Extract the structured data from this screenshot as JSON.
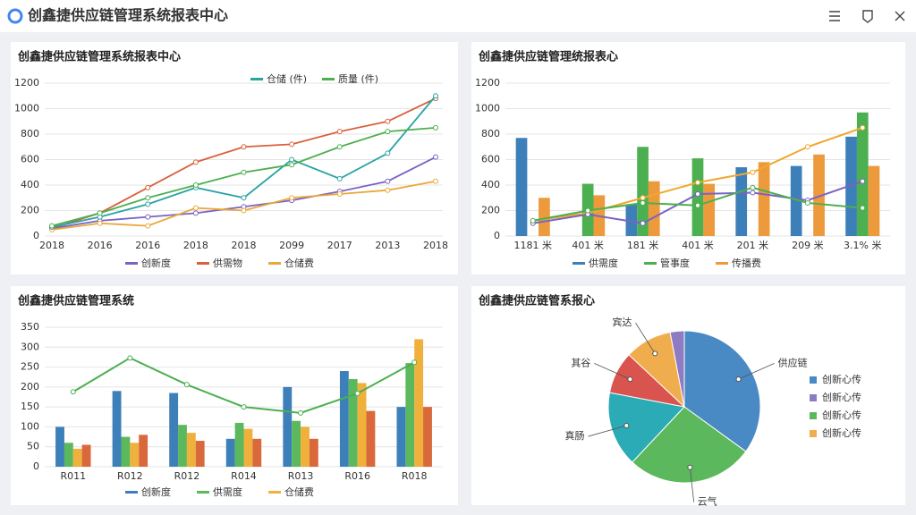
{
  "header": {
    "title": "创鑫捷供应链管理系统报表中心"
  },
  "chart_data": [
    {
      "type": "line",
      "title": "创鑫捷供应链管理系统报表中心",
      "categories": [
        "2018",
        "2016",
        "2016",
        "2018",
        "2018",
        "2099",
        "2017",
        "2013",
        "2018"
      ],
      "ylim": [
        0,
        1200
      ],
      "yticks": [
        0,
        200,
        400,
        600,
        800,
        1000,
        1200
      ],
      "grid": true,
      "series": [
        {
          "name": "创新度",
          "color": "#7b62c4",
          "values": [
            60,
            120,
            150,
            180,
            230,
            280,
            350,
            430,
            620
          ]
        },
        {
          "name": "供需物",
          "color": "#d9603b",
          "values": [
            60,
            180,
            380,
            580,
            700,
            720,
            820,
            900,
            1080
          ]
        },
        {
          "name": "仓储费",
          "color": "#e8a838",
          "values": [
            50,
            100,
            80,
            220,
            200,
            300,
            330,
            360,
            430
          ]
        },
        {
          "name": "仓储 (件)",
          "color": "#2aa3a3",
          "values": [
            70,
            150,
            250,
            380,
            300,
            600,
            450,
            650,
            1100
          ]
        },
        {
          "name": "质量 (件)",
          "color": "#4caf50",
          "values": [
            80,
            180,
            300,
            400,
            500,
            560,
            700,
            820,
            850
          ]
        }
      ]
    },
    {
      "type": "bar",
      "title": "创鑫捷供应链管理统报表心",
      "categories": [
        "1181 米",
        "401 米",
        "181 米",
        "401 米",
        "201 米",
        "209 米",
        "3.1% 米"
      ],
      "ylim": [
        0,
        1200
      ],
      "yticks": [
        0,
        200,
        400,
        600,
        800,
        1000,
        1200
      ],
      "grid": true,
      "series": [
        {
          "name": "供需度",
          "color": "#3d7fb8",
          "values": [
            770,
            null,
            250,
            null,
            540,
            550,
            780
          ]
        },
        {
          "name": "管事度",
          "color": "#4caf50",
          "values": [
            null,
            410,
            700,
            610,
            null,
            null,
            970
          ]
        },
        {
          "name": "传播费",
          "color": "#ec9a3c",
          "values": [
            300,
            320,
            430,
            410,
            580,
            640,
            550
          ]
        },
        {
          "type": "line",
          "color": "#f0a830",
          "values": [
            120,
            180,
            300,
            420,
            500,
            700,
            850
          ]
        },
        {
          "type": "line",
          "color": "#7b62c4",
          "values": [
            100,
            170,
            100,
            330,
            340,
            280,
            430
          ]
        },
        {
          "type": "line",
          "color": "#4caf50",
          "values": [
            120,
            200,
            260,
            240,
            380,
            260,
            220
          ]
        }
      ]
    },
    {
      "type": "bar",
      "title": "创鑫捷供应链管理系统",
      "categories": [
        "R011",
        "R012",
        "R012",
        "R014",
        "R013",
        "R016",
        "R018"
      ],
      "ylim": [
        0,
        350
      ],
      "yticks": [
        0,
        50,
        100,
        150,
        200,
        250,
        300,
        350
      ],
      "grid": true,
      "series": [
        {
          "name": "创新度",
          "color": "#3d7fb8",
          "values": [
            100,
            190,
            185,
            70,
            200,
            240,
            150
          ]
        },
        {
          "name": "供需度",
          "color": "#5cb85c",
          "values": [
            60,
            75,
            105,
            110,
            115,
            220,
            260
          ]
        },
        {
          "name": "仓储费",
          "color": "#f0b03c",
          "values": [
            45,
            60,
            85,
            95,
            100,
            210,
            320
          ]
        },
        {
          "color": "#d9683b",
          "values": [
            55,
            80,
            65,
            70,
            70,
            140,
            150
          ]
        },
        {
          "type": "line",
          "color": "#4caf50",
          "values": [
            188,
            273,
            206,
            150,
            135,
            184,
            262
          ]
        }
      ]
    },
    {
      "type": "pie",
      "title": "创鑫捷供应链管系报心",
      "categories": [
        "供应链",
        "云气",
        "真肠",
        "其谷",
        "宾达",
        null
      ],
      "values": [
        35,
        27,
        16,
        9,
        10,
        3
      ],
      "colors": [
        "#4a8ac4",
        "#5cb85c",
        "#2aabb5",
        "#d9534f",
        "#f0ad4e",
        "#8e7cc3"
      ],
      "legend": [
        {
          "label": "创新心传",
          "color": "#4a8ac4"
        },
        {
          "label": "创新心传",
          "color": "#8e7cc3"
        },
        {
          "label": "创新心传",
          "color": "#5cb85c"
        },
        {
          "label": "创新心传",
          "color": "#f0ad4e"
        }
      ]
    }
  ]
}
